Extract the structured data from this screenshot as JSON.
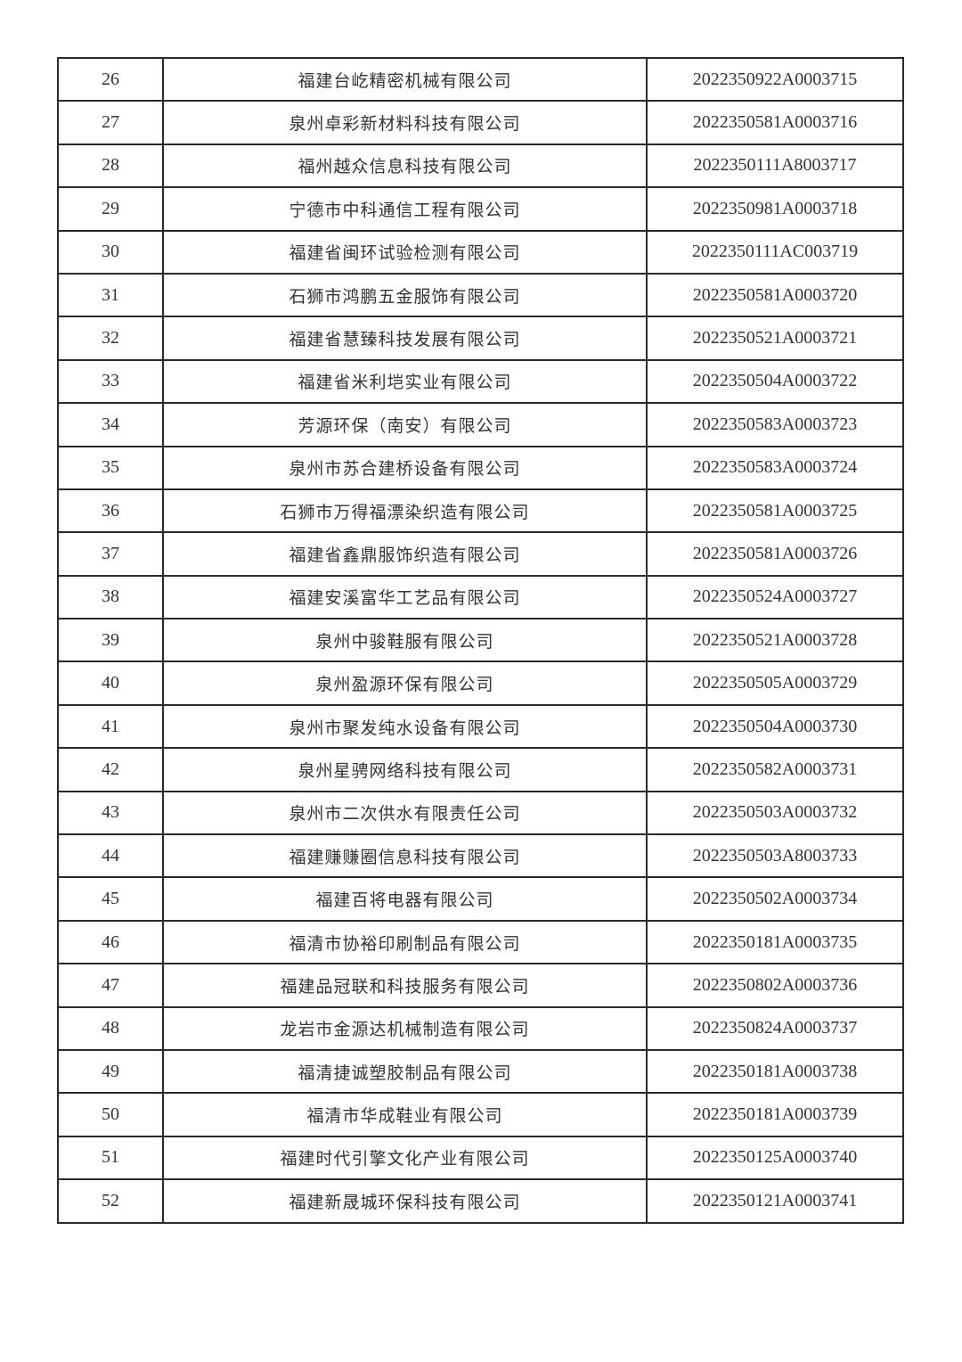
{
  "rows": [
    {
      "no": "26",
      "name": "福建台屹精密机械有限公司",
      "code": "2022350922A0003715"
    },
    {
      "no": "27",
      "name": "泉州卓彩新材料科技有限公司",
      "code": "2022350581A0003716"
    },
    {
      "no": "28",
      "name": "福州越众信息科技有限公司",
      "code": "2022350111A8003717"
    },
    {
      "no": "29",
      "name": "宁德市中科通信工程有限公司",
      "code": "2022350981A0003718"
    },
    {
      "no": "30",
      "name": "福建省闽环试验检测有限公司",
      "code": "2022350111AC003719"
    },
    {
      "no": "31",
      "name": "石狮市鸿鹏五金服饰有限公司",
      "code": "2022350581A0003720"
    },
    {
      "no": "32",
      "name": "福建省慧臻科技发展有限公司",
      "code": "2022350521A0003721"
    },
    {
      "no": "33",
      "name": "福建省米利垲实业有限公司",
      "code": "2022350504A0003722"
    },
    {
      "no": "34",
      "name": "芳源环保（南安）有限公司",
      "code": "2022350583A0003723"
    },
    {
      "no": "35",
      "name": "泉州市苏合建桥设备有限公司",
      "code": "2022350583A0003724"
    },
    {
      "no": "36",
      "name": "石狮市万得福漂染织造有限公司",
      "code": "2022350581A0003725"
    },
    {
      "no": "37",
      "name": "福建省鑫鼎服饰织造有限公司",
      "code": "2022350581A0003726"
    },
    {
      "no": "38",
      "name": "福建安溪富华工艺品有限公司",
      "code": "2022350524A0003727"
    },
    {
      "no": "39",
      "name": "泉州中骏鞋服有限公司",
      "code": "2022350521A0003728"
    },
    {
      "no": "40",
      "name": "泉州盈源环保有限公司",
      "code": "2022350505A0003729"
    },
    {
      "no": "41",
      "name": "泉州市聚发纯水设备有限公司",
      "code": "2022350504A0003730"
    },
    {
      "no": "42",
      "name": "泉州星骋网络科技有限公司",
      "code": "2022350582A0003731"
    },
    {
      "no": "43",
      "name": "泉州市二次供水有限责任公司",
      "code": "2022350503A0003732"
    },
    {
      "no": "44",
      "name": "福建赚赚圈信息科技有限公司",
      "code": "2022350503A8003733"
    },
    {
      "no": "45",
      "name": "福建百将电器有限公司",
      "code": "2022350502A0003734"
    },
    {
      "no": "46",
      "name": "福清市协裕印刷制品有限公司",
      "code": "2022350181A0003735"
    },
    {
      "no": "47",
      "name": "福建品冠联和科技服务有限公司",
      "code": "2022350802A0003736"
    },
    {
      "no": "48",
      "name": "龙岩市金源达机械制造有限公司",
      "code": "2022350824A0003737"
    },
    {
      "no": "49",
      "name": "福清捷诚塑胶制品有限公司",
      "code": "2022350181A0003738"
    },
    {
      "no": "50",
      "name": "福清市华成鞋业有限公司",
      "code": "2022350181A0003739"
    },
    {
      "no": "51",
      "name": "福建时代引擎文化产业有限公司",
      "code": "2022350125A0003740"
    },
    {
      "no": "52",
      "name": "福建新晟城环保科技有限公司",
      "code": "2022350121A0003741"
    }
  ]
}
